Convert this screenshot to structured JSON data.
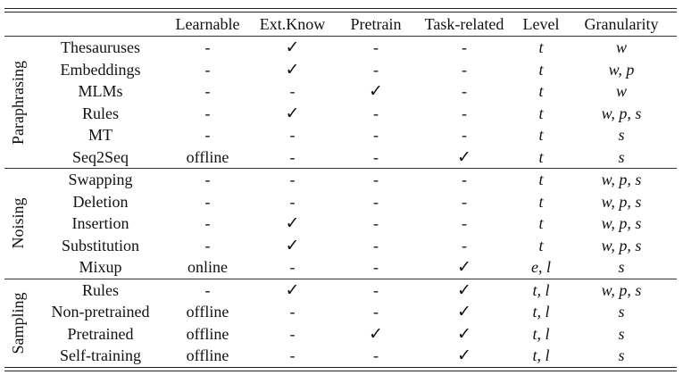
{
  "headers": [
    "",
    "",
    "Learnable",
    "Ext.Know",
    "Pretrain",
    "Task-related",
    "Level",
    "Granularity"
  ],
  "groups": [
    {
      "name": "Paraphrasing",
      "rows": [
        {
          "method": "Thesauruses",
          "learnable": "-",
          "ext_know": "✓",
          "pretrain": "-",
          "task_related": "-",
          "level": "t",
          "granularity": "w"
        },
        {
          "method": "Embeddings",
          "learnable": "-",
          "ext_know": "✓",
          "pretrain": "-",
          "task_related": "-",
          "level": "t",
          "granularity": "w, p"
        },
        {
          "method": "MLMs",
          "learnable": "-",
          "ext_know": "-",
          "pretrain": "✓",
          "task_related": "-",
          "level": "t",
          "granularity": "w"
        },
        {
          "method": "Rules",
          "learnable": "-",
          "ext_know": "✓",
          "pretrain": "-",
          "task_related": "-",
          "level": "t",
          "granularity": "w, p, s"
        },
        {
          "method": "MT",
          "learnable": "-",
          "ext_know": "-",
          "pretrain": "-",
          "task_related": "-",
          "level": "t",
          "granularity": "s"
        },
        {
          "method": "Seq2Seq",
          "learnable": "offline",
          "ext_know": "-",
          "pretrain": "-",
          "task_related": "✓",
          "level": "t",
          "granularity": "s"
        }
      ]
    },
    {
      "name": "Noising",
      "rows": [
        {
          "method": "Swapping",
          "learnable": "-",
          "ext_know": "-",
          "pretrain": "-",
          "task_related": "-",
          "level": "t",
          "granularity": "w, p, s"
        },
        {
          "method": "Deletion",
          "learnable": "-",
          "ext_know": "-",
          "pretrain": "-",
          "task_related": "-",
          "level": "t",
          "granularity": "w, p, s"
        },
        {
          "method": "Insertion",
          "learnable": "-",
          "ext_know": "✓",
          "pretrain": "-",
          "task_related": "-",
          "level": "t",
          "granularity": "w, p, s"
        },
        {
          "method": "Substitution",
          "learnable": "-",
          "ext_know": "✓",
          "pretrain": "-",
          "task_related": "-",
          "level": "t",
          "granularity": "w, p, s"
        },
        {
          "method": "Mixup",
          "learnable": "online",
          "ext_know": "-",
          "pretrain": "-",
          "task_related": "✓",
          "level": "e, l",
          "granularity": "s"
        }
      ]
    },
    {
      "name": "Sampling",
      "rows": [
        {
          "method": "Rules",
          "learnable": "-",
          "ext_know": "✓",
          "pretrain": "-",
          "task_related": "✓",
          "level": "t, l",
          "granularity": "w, p, s"
        },
        {
          "method": "Non-pretrained",
          "learnable": "offline",
          "ext_know": "-",
          "pretrain": "-",
          "task_related": "✓",
          "level": "t, l",
          "granularity": "s"
        },
        {
          "method": "Pretrained",
          "learnable": "offline",
          "ext_know": "-",
          "pretrain": "✓",
          "task_related": "✓",
          "level": "t, l",
          "granularity": "s"
        },
        {
          "method": "Self-training",
          "learnable": "offline",
          "ext_know": "-",
          "pretrain": "-",
          "task_related": "✓",
          "level": "t, l",
          "granularity": "s"
        }
      ]
    }
  ]
}
